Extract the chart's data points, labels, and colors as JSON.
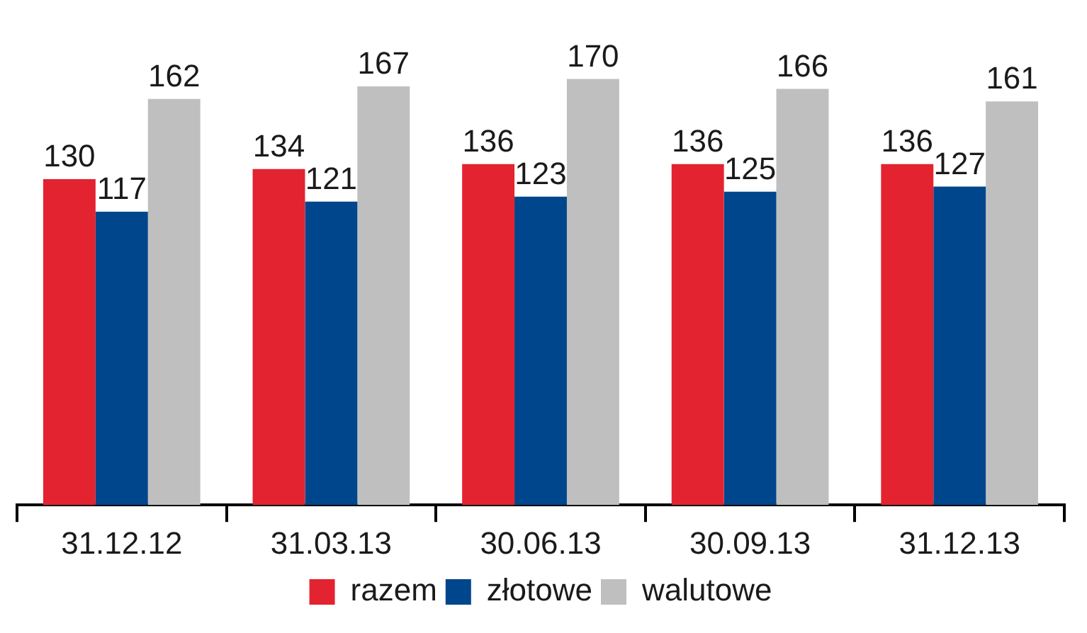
{
  "chart_data": {
    "type": "bar",
    "categories": [
      "31.12.12",
      "31.03.13",
      "30.06.13",
      "30.09.13",
      "31.12.13"
    ],
    "series": [
      {
        "name": "razem",
        "color": "#e3232f",
        "values": [
          130,
          134,
          136,
          136,
          136
        ]
      },
      {
        "name": "złotowe",
        "color": "#00468c",
        "values": [
          117,
          121,
          123,
          125,
          127
        ]
      },
      {
        "name": "walutowe",
        "color": "#bfbfbf",
        "values": [
          162,
          167,
          170,
          166,
          161
        ]
      }
    ],
    "data_labels": true,
    "legend": "bottom",
    "grid": false
  }
}
